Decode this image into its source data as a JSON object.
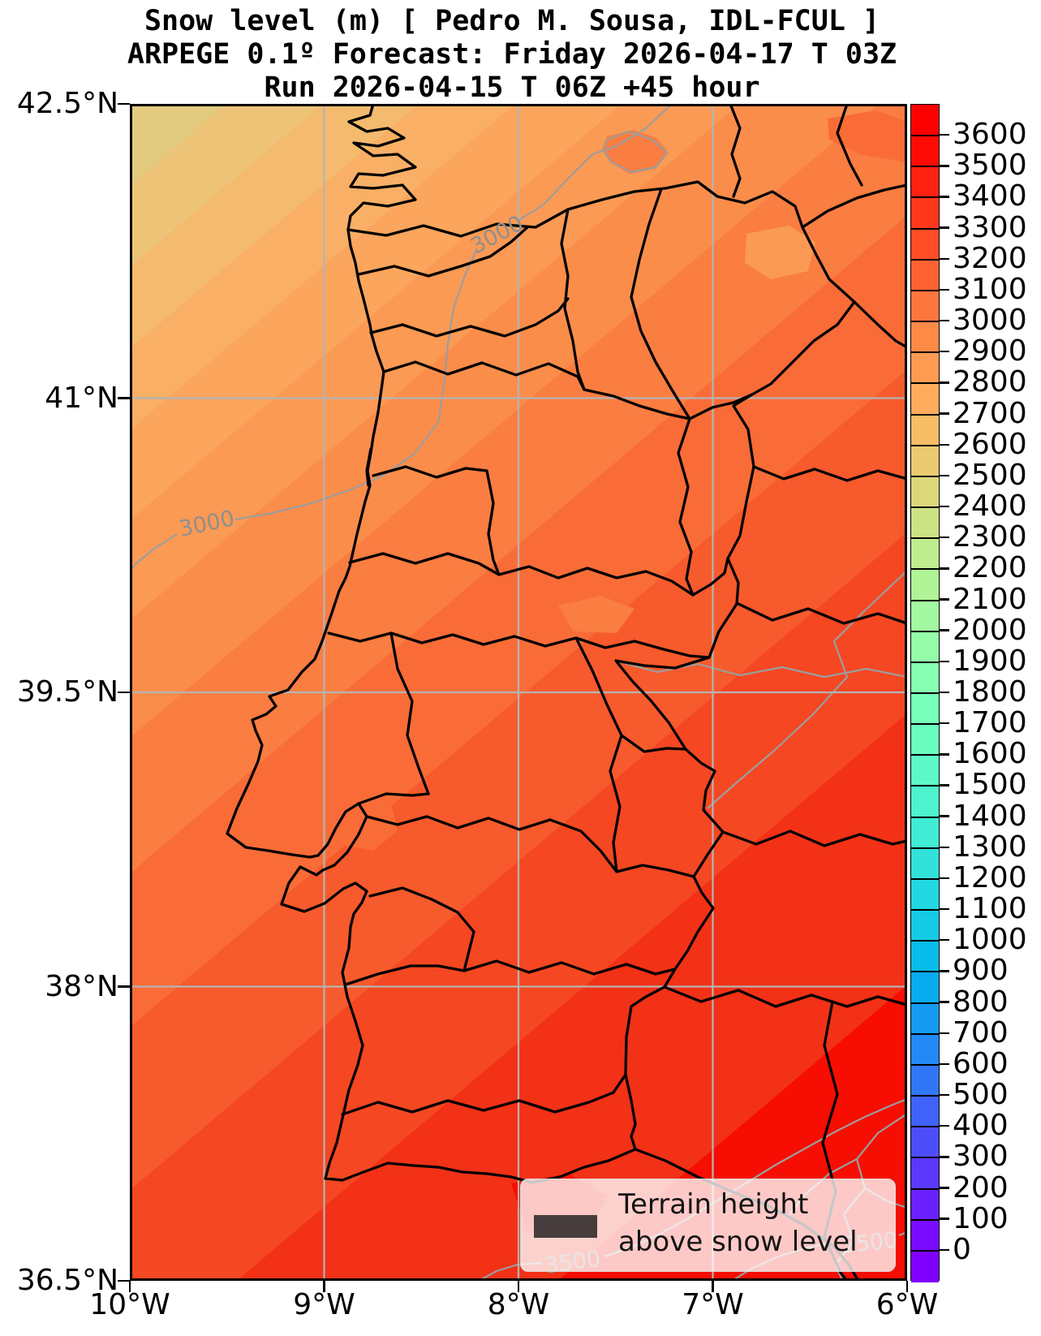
{
  "title": {
    "line1": "Snow level (m) [ Pedro M. Sousa, IDL-FCUL ]",
    "line2": "ARPEGE 0.1º Forecast: Friday 2026-04-17 T 03Z",
    "line3": "Run 2026-04-15 T 06Z +45 hour"
  },
  "axes": {
    "x_ticks": [
      "10°W",
      "9°W",
      "8°W",
      "7°W",
      "6°W"
    ],
    "y_ticks": [
      "42.5°N",
      "41°N",
      "39.5°N",
      "38°N",
      "36.5°N"
    ]
  },
  "colorbar": {
    "tick_values": [
      3600,
      3500,
      3400,
      3300,
      3200,
      3100,
      3000,
      2900,
      2800,
      2700,
      2600,
      2500,
      2400,
      2300,
      2200,
      2100,
      2000,
      1900,
      1800,
      1700,
      1600,
      1500,
      1400,
      1300,
      1200,
      1100,
      1000,
      900,
      800,
      700,
      600,
      500,
      400,
      300,
      200,
      100,
      0
    ],
    "colormap": "rainbow",
    "extend": "both"
  },
  "map": {
    "contour_labels": [
      "3000",
      "3000",
      "3500",
      "3500"
    ]
  },
  "legend": {
    "line1": "Terrain height",
    "line2": "above snow level",
    "swatch_color": "#473d3d"
  },
  "chart_data": {
    "type": "heatmap",
    "title": "Snow level (m) [ Pedro M. Sousa, IDL-FCUL ]",
    "subtitle": "ARPEGE 0.1º Forecast: Friday 2026-04-17 T 03Z",
    "run_info": "Run 2026-04-15 T 06Z +45 hour",
    "variable": "Snow level (m)",
    "model": "ARPEGE 0.1º",
    "valid_time": "Friday 2026-04-17 T 03Z",
    "run_time": "2026-04-15 T 06Z",
    "lead_hours": 45,
    "x_axis": {
      "label": "longitude",
      "tick_labels": [
        "10°W",
        "9°W",
        "8°W",
        "7°W",
        "6°W"
      ],
      "range_deg": [
        -10,
        -6
      ]
    },
    "y_axis": {
      "label": "latitude",
      "tick_labels": [
        "42.5°N",
        "41°N",
        "39.5°N",
        "38°N",
        "36.5°N"
      ],
      "range_deg": [
        36.5,
        42.5
      ]
    },
    "color_scale": {
      "min": 0,
      "max": 3600,
      "step": 100,
      "units": "m",
      "colormap": "rainbow",
      "extend": "both"
    },
    "contour_line_labels_m": [
      3000,
      3000,
      3500,
      3500
    ],
    "field_summary": {
      "northwest_corner_m": 2450,
      "north_portugal_m": 3050,
      "lisbon_area_m": 3250,
      "southeast_corner_m": 3650,
      "gradient": "snow level increases from NW (~2400 m) to SE (>3600 m)"
    },
    "legend_patch": "Terrain height above snow level",
    "grid": true,
    "legend_position": "lower right",
    "region": "Portugal and western Spain"
  }
}
